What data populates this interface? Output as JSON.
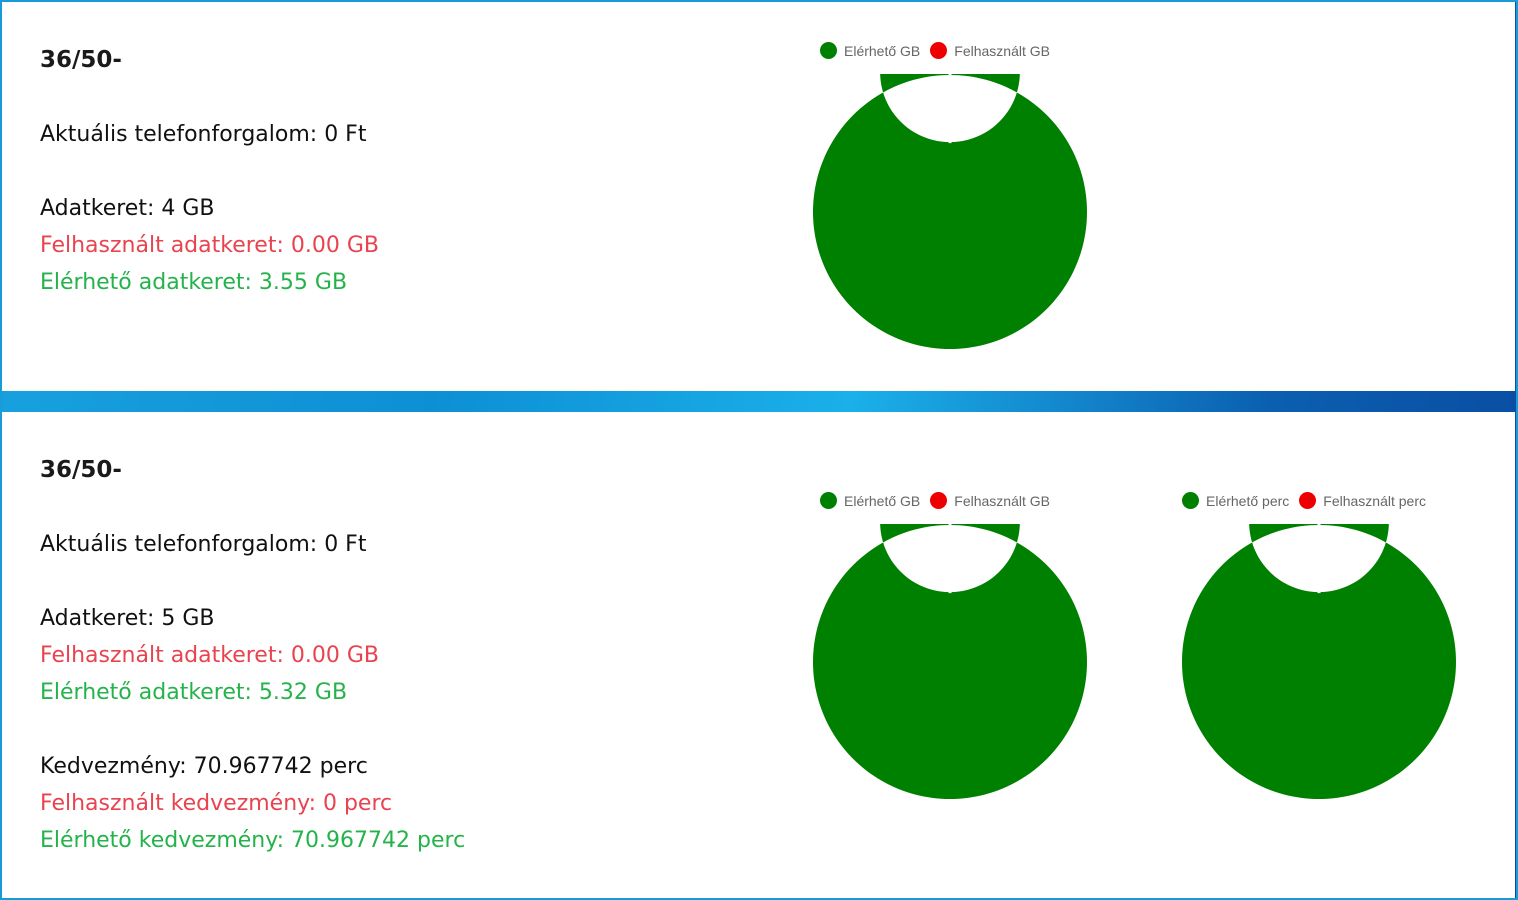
{
  "colors": {
    "available": "#008000",
    "used": "#ee0000",
    "used_text": "#e8434f",
    "available_text": "#24b34b"
  },
  "cards": [
    {
      "title": "36/50-",
      "traffic": "Aktuális telefonforgalom: 0 Ft",
      "data_limit": "Adatkeret: 4 GB",
      "data_used": "Felhasznált adatkeret: 0.00 GB",
      "data_available": "Elérhető adatkeret: 3.55 GB",
      "charts": [
        {
          "legend": [
            "Elérhető GB",
            "Felhasznált GB"
          ],
          "values": [
            3.55,
            0.0
          ]
        }
      ]
    },
    {
      "title": "36/50-",
      "traffic": "Aktuális telefonforgalom: 0 Ft",
      "data_limit": "Adatkeret: 5 GB",
      "data_used": "Felhasznált adatkeret: 0.00 GB",
      "data_available": "Elérhető adatkeret: 5.32 GB",
      "discount": "Kedvezmény: 70.967742 perc",
      "discount_used": "Felhasznált kedvezmény: 0 perc",
      "discount_available": "Elérhető kedvezmény: 70.967742 perc",
      "charts": [
        {
          "legend": [
            "Elérhető GB",
            "Felhasznált GB"
          ],
          "values": [
            5.32,
            0.0
          ]
        },
        {
          "legend": [
            "Elérhető perc",
            "Felhasznált perc"
          ],
          "values": [
            70.967742,
            0
          ]
        }
      ]
    }
  ]
}
